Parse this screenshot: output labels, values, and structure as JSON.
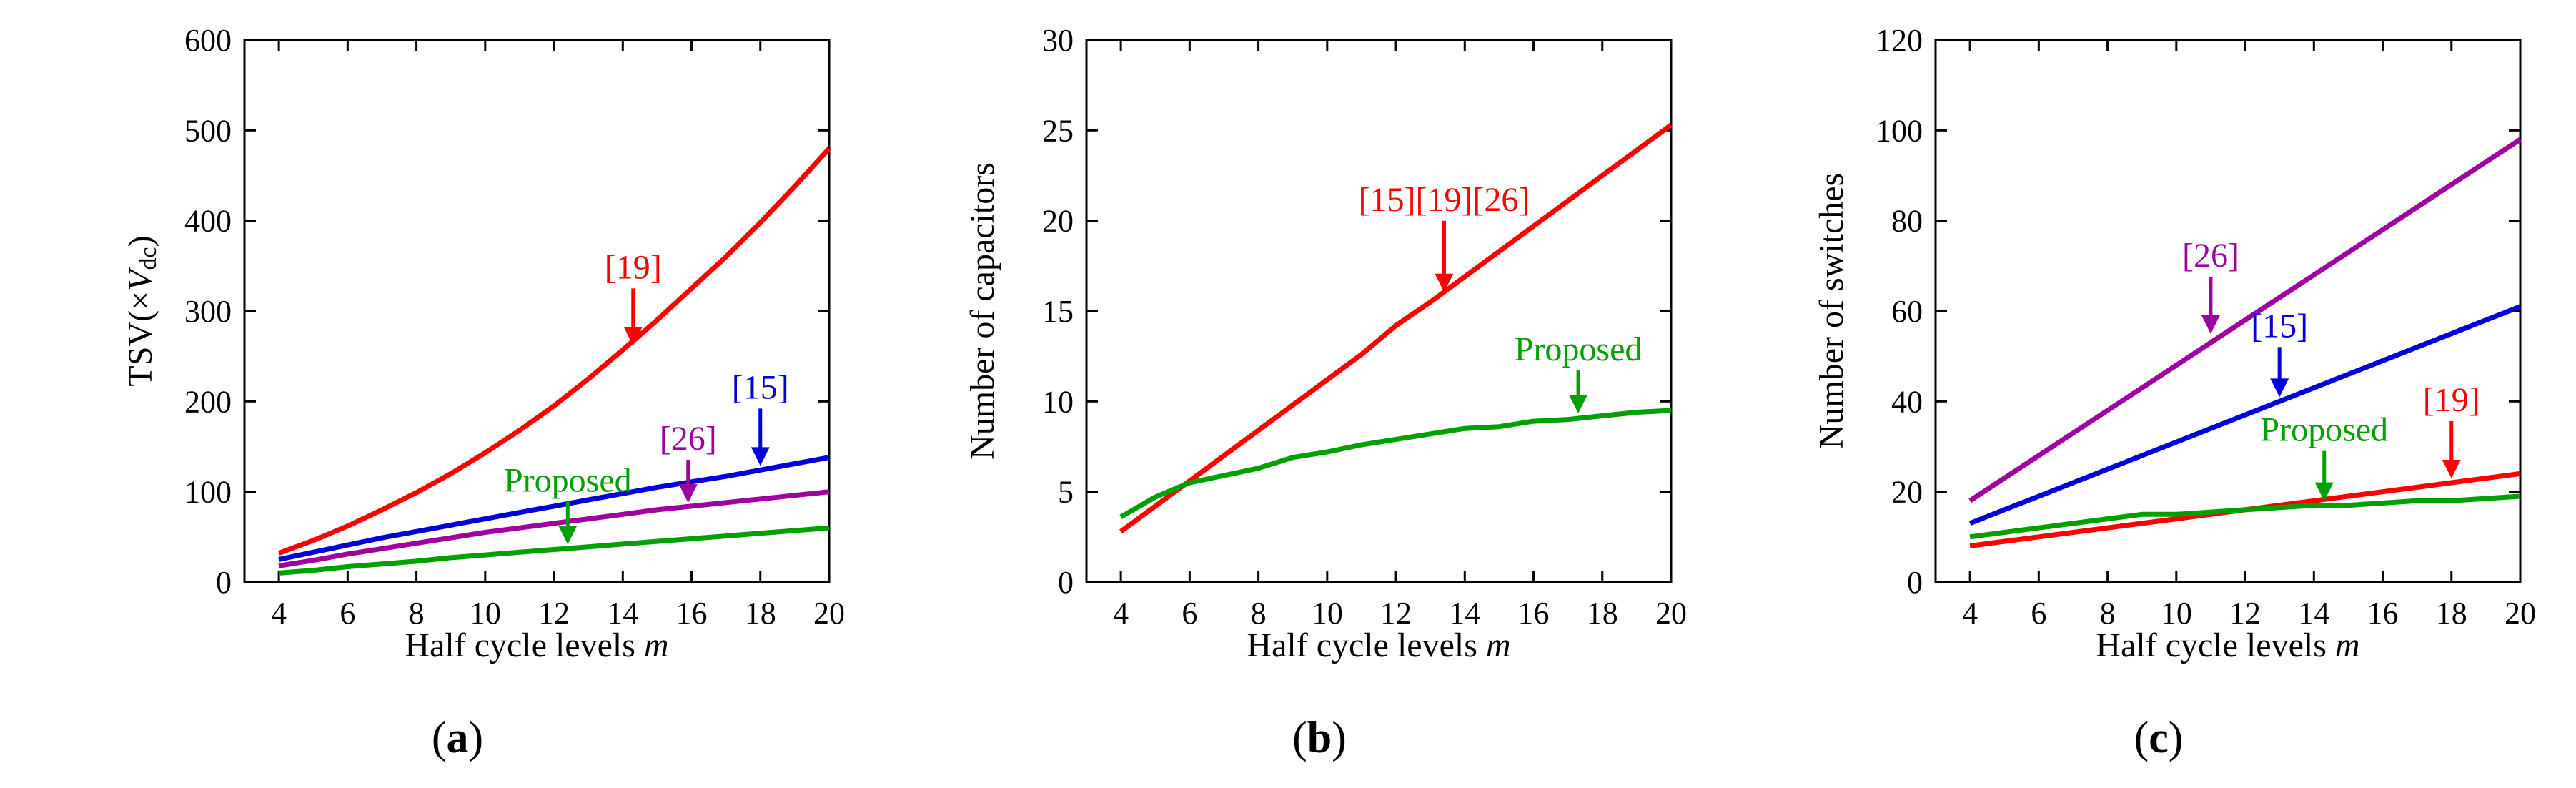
{
  "chart_data": [
    {
      "type": "line",
      "panel": "a",
      "caption_open": "(",
      "caption_letter": "a",
      "caption_close": ")",
      "xlabel": "Half cycle levels ",
      "xlabel_var": "m",
      "ylabel_pre": "TSV(×",
      "ylabel_var": "V",
      "ylabel_sub": "dc",
      "ylabel_post": ")",
      "xlim": [
        3,
        20
      ],
      "ylim": [
        0,
        600
      ],
      "xticks": [
        "4",
        "6",
        "8",
        "10",
        "12",
        "14",
        "16",
        "18",
        "20"
      ],
      "yticks": [
        "0",
        "100",
        "200",
        "300",
        "400",
        "500",
        "600"
      ],
      "x": [
        4,
        5,
        6,
        7,
        8,
        9,
        10,
        11,
        12,
        13,
        14,
        15,
        16,
        17,
        18,
        19,
        20
      ],
      "series": [
        {
          "name": "[19]",
          "color": "#ff0000",
          "values": [
            32,
            46,
            62,
            80,
            99,
            120,
            143,
            168,
            195,
            225,
            257,
            290,
            325,
            360,
            398,
            438,
            480
          ]
        },
        {
          "name": "[15]",
          "color": "#0000dd",
          "values": [
            25,
            33,
            41,
            49,
            56,
            63,
            70,
            77,
            84,
            91,
            98,
            105,
            111,
            117,
            124,
            131,
            138
          ]
        },
        {
          "name": "[26]",
          "color": "#a000a0",
          "values": [
            18,
            24,
            31,
            37,
            43,
            49,
            55,
            60,
            65,
            70,
            75,
            80,
            84,
            88,
            92,
            96,
            100
          ]
        },
        {
          "name": "Proposed",
          "color": "#00a000",
          "values": [
            10,
            13,
            17,
            20,
            23,
            27,
            30,
            33,
            36,
            39,
            42,
            45,
            48,
            51,
            54,
            57,
            60
          ]
        }
      ],
      "annotations": [
        {
          "label": "[19]",
          "color": "#ff0000",
          "x": 14.3,
          "y": 257
        },
        {
          "label": "[15]",
          "color": "#0000dd",
          "x": 18.0,
          "y": 124
        },
        {
          "label": "[26]",
          "color": "#a000a0",
          "x": 15.9,
          "y": 83
        },
        {
          "label": "Proposed",
          "color": "#00a000",
          "x": 12.4,
          "y": 37
        }
      ]
    },
    {
      "type": "line",
      "panel": "b",
      "caption_open": "(",
      "caption_letter": "b",
      "caption_close": ")",
      "xlabel": "Half cycle levels ",
      "xlabel_var": "m",
      "ylabel": "Number of capacitors",
      "xlim": [
        3,
        20
      ],
      "ylim": [
        0,
        30
      ],
      "xticks": [
        "4",
        "6",
        "8",
        "10",
        "12",
        "14",
        "16",
        "18",
        "20"
      ],
      "yticks": [
        "0",
        "5",
        "10",
        "15",
        "20",
        "25",
        "30"
      ],
      "x": [
        4,
        5,
        6,
        7,
        8,
        9,
        10,
        11,
        12,
        13,
        14,
        15,
        16,
        17,
        18,
        19,
        20
      ],
      "series": [
        {
          "name": "[15][19][26]",
          "color": "#ff0000",
          "values": [
            2.8,
            4.2,
            5.6,
            7.0,
            8.4,
            9.8,
            11.2,
            12.6,
            14.2,
            15.5,
            16.9,
            18.3,
            19.7,
            21.1,
            22.5,
            23.9,
            25.3
          ]
        },
        {
          "name": "Proposed",
          "color": "#00a000",
          "values": [
            3.6,
            4.7,
            5.5,
            5.9,
            6.3,
            6.9,
            7.2,
            7.6,
            7.9,
            8.2,
            8.5,
            8.6,
            8.9,
            9.0,
            9.2,
            9.4,
            9.5
          ]
        }
      ],
      "annotations": [
        {
          "label": "[15][19][26]",
          "color": "#ff0000",
          "x": 13.4,
          "y": 15.8
        },
        {
          "label": "Proposed",
          "color": "#00a000",
          "x": 17.3,
          "y": 9.1
        }
      ]
    },
    {
      "type": "line",
      "panel": "c",
      "caption_open": "(",
      "caption_letter": "c",
      "caption_close": ")",
      "xlabel": "Half cycle levels ",
      "xlabel_var": "m",
      "ylabel": "Number of switches",
      "xlim": [
        3,
        20
      ],
      "ylim": [
        0,
        120
      ],
      "xticks": [
        "4",
        "6",
        "8",
        "10",
        "12",
        "14",
        "16",
        "18",
        "20"
      ],
      "yticks": [
        "0",
        "20",
        "40",
        "60",
        "80",
        "100",
        "120"
      ],
      "x": [
        4,
        5,
        6,
        7,
        8,
        9,
        10,
        11,
        12,
        13,
        14,
        15,
        16,
        17,
        18,
        19,
        20
      ],
      "series": [
        {
          "name": "[26]",
          "color": "#a000a0",
          "values": [
            18,
            23,
            28,
            33,
            38,
            43,
            48,
            53,
            58,
            63,
            68,
            73,
            78,
            83,
            88,
            93,
            98
          ]
        },
        {
          "name": "[15]",
          "color": "#0000dd",
          "values": [
            13,
            16,
            19,
            22,
            25,
            28,
            31,
            34,
            37,
            40,
            43,
            46,
            49,
            52,
            55,
            58,
            61
          ]
        },
        {
          "name": "[19]",
          "color": "#ff0000",
          "values": [
            8,
            9,
            10,
            11,
            12,
            13,
            14,
            15,
            16,
            17,
            18,
            19,
            20,
            21,
            22,
            23,
            24
          ]
        },
        {
          "name": "Proposed",
          "color": "#00a000",
          "values": [
            10,
            11,
            12,
            13,
            14,
            15,
            15,
            15.5,
            16,
            16.5,
            17,
            17,
            17.5,
            18,
            18,
            18.5,
            19
          ]
        }
      ],
      "annotations": [
        {
          "label": "[26]",
          "color": "#a000a0",
          "x": 11.0,
          "y": 54
        },
        {
          "label": "[15]",
          "color": "#0000dd",
          "x": 13.0,
          "y": 40
        },
        {
          "label": "[19]",
          "color": "#ff0000",
          "x": 18.0,
          "y": 22
        },
        {
          "label": "Proposed",
          "color": "#00a000",
          "x": 14.3,
          "y": 17
        }
      ]
    }
  ]
}
